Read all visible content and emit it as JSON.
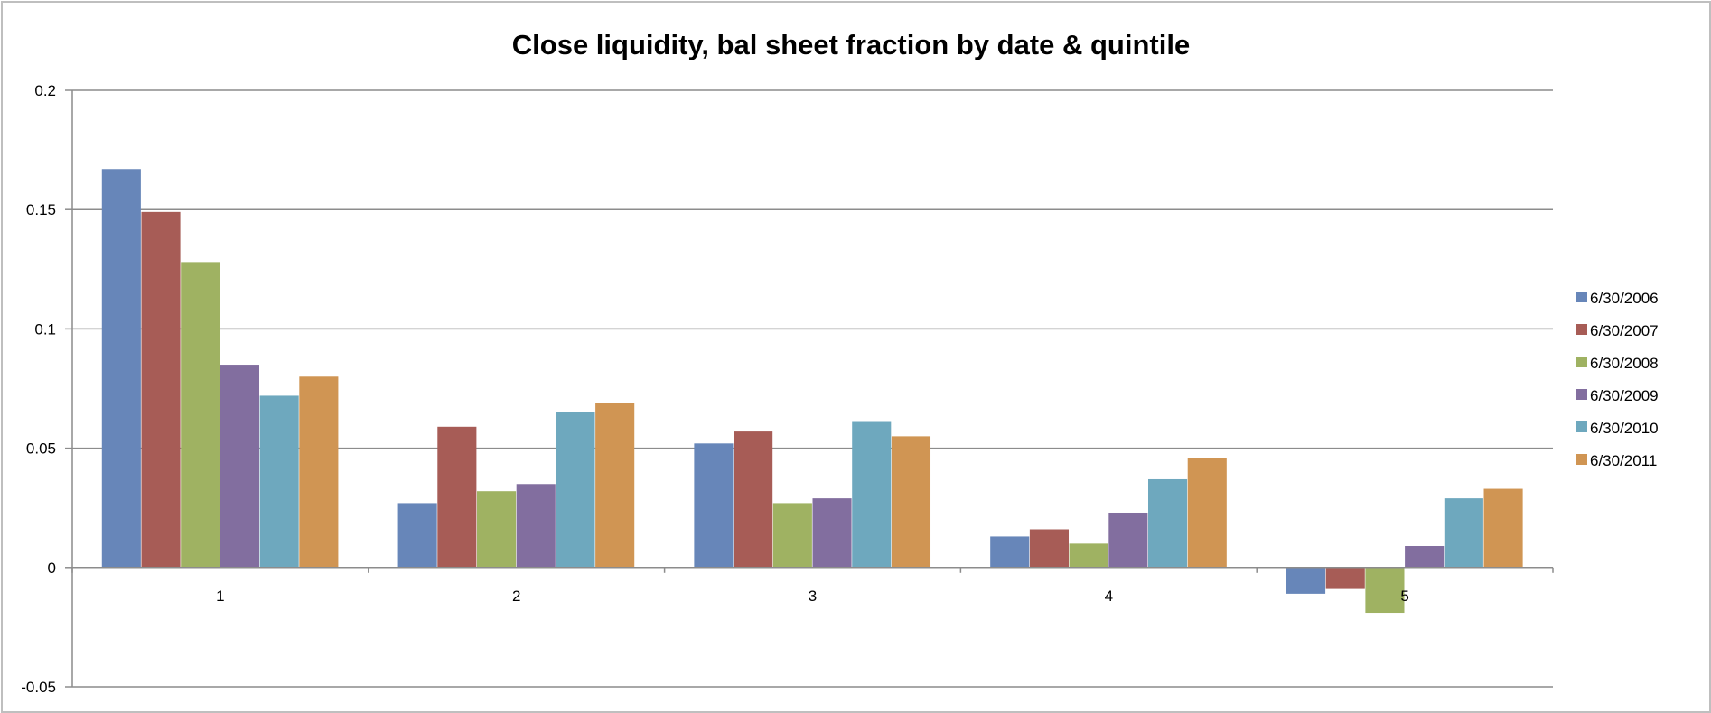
{
  "chart_data": {
    "type": "bar",
    "title": "Close liquidity, bal sheet fraction by  date & quintile",
    "xlabel": "",
    "ylabel": "",
    "categories": [
      "1",
      "2",
      "3",
      "4",
      "5"
    ],
    "ylim": [
      -0.05,
      0.2
    ],
    "yticks": [
      "-0.05",
      "0",
      "0.05",
      "0.1",
      "0.15",
      "0.2"
    ],
    "ytick_values": [
      -0.05,
      0,
      0.05,
      0.1,
      0.15,
      0.2
    ],
    "grid": true,
    "legend_position": "right",
    "series": [
      {
        "name": "6/30/2006",
        "color": "#6786b9",
        "values": [
          0.167,
          0.027,
          0.052,
          0.013,
          -0.011
        ]
      },
      {
        "name": "6/30/2007",
        "color": "#a75c56",
        "values": [
          0.149,
          0.059,
          0.057,
          0.016,
          -0.009
        ]
      },
      {
        "name": "6/30/2008",
        "color": "#9fb262",
        "values": [
          0.128,
          0.032,
          0.027,
          0.01,
          -0.019
        ]
      },
      {
        "name": "6/30/2009",
        "color": "#826e9f",
        "values": [
          0.085,
          0.035,
          0.029,
          0.023,
          0.009
        ]
      },
      {
        "name": "6/30/2010",
        "color": "#6ea8be",
        "values": [
          0.072,
          0.065,
          0.061,
          0.037,
          0.029
        ]
      },
      {
        "name": "6/30/2011",
        "color": "#d09553",
        "values": [
          0.08,
          0.069,
          0.055,
          0.046,
          0.033
        ]
      }
    ]
  }
}
